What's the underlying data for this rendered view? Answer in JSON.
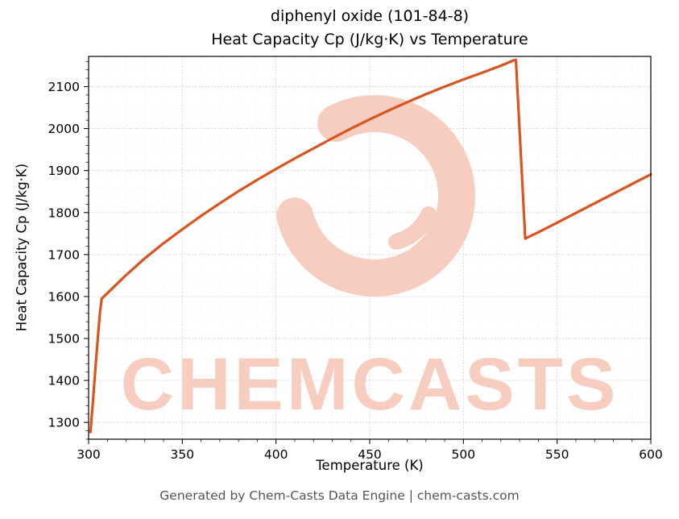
{
  "title_line1": "diphenyl oxide (101-84-8)",
  "title_line2": "Heat Capacity Cp (J/kg·K) vs Temperature",
  "footer_text": "Generated by Chem-Casts Data Engine | chem-casts.com",
  "watermark": {
    "text": "CHEMCASTS",
    "color": "#f7cdc0"
  },
  "chart_data": {
    "type": "line",
    "title": "diphenyl oxide (101-84-8) — Heat Capacity Cp (J/kg·K) vs Temperature",
    "xlabel": "Temperature (K)",
    "ylabel": "Heat Capacity Cp (J/kg·K)",
    "xlim": [
      300,
      600
    ],
    "ylim": [
      1260,
      2172
    ],
    "xticks": [
      300,
      350,
      400,
      450,
      500,
      550,
      600
    ],
    "yticks": [
      1300,
      1400,
      1500,
      1600,
      1700,
      1800,
      1900,
      2000,
      2100
    ],
    "grid": "major-and-minor-dotted",
    "legend": "none",
    "line_color": "#d9541e",
    "series": [
      {
        "name": "Cp",
        "x": [
          301,
          302.5,
          304,
          306,
          307,
          310,
          320,
          330,
          340,
          350,
          360,
          370,
          380,
          390,
          400,
          410,
          420,
          430,
          440,
          450,
          460,
          470,
          480,
          490,
          500,
          510,
          520,
          527,
          528,
          533,
          540,
          550,
          560,
          570,
          580,
          590,
          600
        ],
        "y": [
          1277,
          1360,
          1450,
          1560,
          1595,
          1608,
          1651,
          1691,
          1727,
          1760,
          1792,
          1822,
          1851,
          1878,
          1904,
          1929,
          1953,
          1977,
          2000,
          2022,
          2043,
          2063,
          2082,
          2100,
          2117,
          2133,
          2150,
          2163,
          2164,
          1738,
          1753,
          1776,
          1799,
          1822,
          1845,
          1868,
          1891
        ]
      }
    ]
  }
}
